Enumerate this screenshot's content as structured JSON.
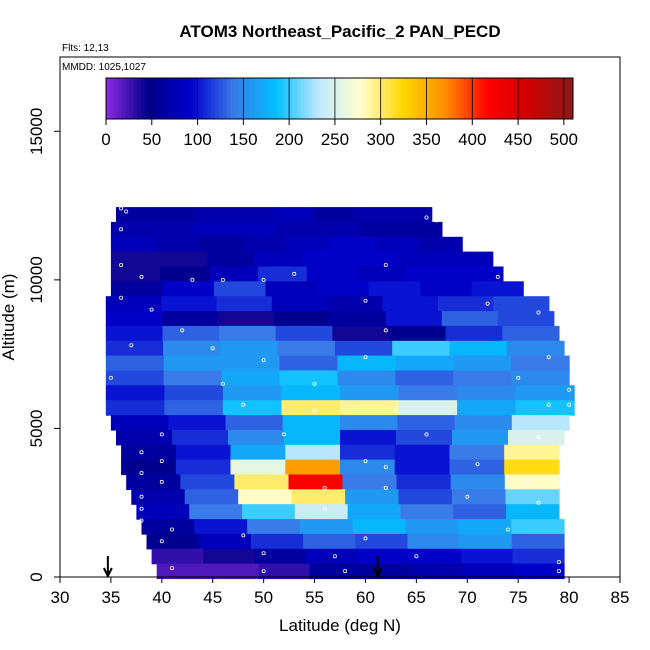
{
  "chart_data": {
    "type": "heatmap",
    "title": "ATOM3 Northeast_Pacific_2 PAN_PECD",
    "annotations": {
      "flights": "Flts: 12,13",
      "dates": "MMDD: 1025,1027"
    },
    "xlabel": "Latitude (deg N)",
    "ylabel": "Altitude (m)",
    "xlim": [
      30,
      85
    ],
    "ylim": [
      0,
      17500
    ],
    "xticks": [
      30,
      35,
      40,
      45,
      50,
      55,
      60,
      65,
      70,
      75,
      80,
      85
    ],
    "yticks": [
      0,
      5000,
      10000,
      15000
    ],
    "colorbar": {
      "ticks": [
        0,
        50,
        100,
        150,
        200,
        250,
        300,
        350,
        400,
        450,
        500
      ],
      "range": [
        0,
        510
      ],
      "colors": [
        "#8a2be2",
        "#00008b",
        "#0000cd",
        "#3a7ae8",
        "#00bfff",
        "#bfe8ff",
        "#ffffcc",
        "#ffd700",
        "#ff8c00",
        "#ff0000",
        "#cd0000",
        "#8b1a1a"
      ]
    },
    "arrows_at_latitude": [
      34.7,
      61.2
    ],
    "field_rows": [
      {
        "alt": 12200,
        "lat": [
          35.5,
          66.5
        ],
        "values": [
          60,
          60,
          70,
          70,
          80,
          60,
          70,
          70
        ]
      },
      {
        "alt": 11700,
        "lat": [
          35.0,
          67.5
        ],
        "values": [
          70,
          70,
          80,
          80,
          70,
          70,
          60,
          60
        ]
      },
      {
        "alt": 11200,
        "lat": [
          35.0,
          69.5
        ],
        "values": [
          80,
          70,
          60,
          70,
          80,
          90,
          80,
          70
        ]
      },
      {
        "alt": 10700,
        "lat": [
          35.0,
          72.5
        ],
        "values": [
          40,
          40,
          60,
          80,
          90,
          90,
          80,
          80
        ]
      },
      {
        "alt": 10200,
        "lat": [
          35.0,
          73.5
        ],
        "values": [
          40,
          50,
          80,
          110,
          90,
          80,
          90,
          90
        ]
      },
      {
        "alt": 9700,
        "lat": [
          35.0,
          75.5
        ],
        "values": [
          60,
          90,
          120,
          80,
          90,
          100,
          90,
          100
        ]
      },
      {
        "alt": 9200,
        "lat": [
          34.5,
          78.0
        ],
        "values": [
          80,
          100,
          110,
          80,
          70,
          100,
          110,
          120
        ]
      },
      {
        "alt": 8700,
        "lat": [
          34.5,
          78.5
        ],
        "values": [
          90,
          60,
          40,
          50,
          60,
          100,
          130,
          120
        ]
      },
      {
        "alt": 8200,
        "lat": [
          34.5,
          79.0
        ],
        "values": [
          100,
          130,
          140,
          120,
          40,
          50,
          110,
          130
        ]
      },
      {
        "alt": 7700,
        "lat": [
          34.5,
          79.5
        ],
        "values": [
          110,
          150,
          160,
          140,
          120,
          200,
          180,
          150
        ]
      },
      {
        "alt": 7200,
        "lat": [
          34.5,
          80.0
        ],
        "values": [
          130,
          160,
          160,
          130,
          180,
          170,
          160,
          140
        ]
      },
      {
        "alt": 6700,
        "lat": [
          34.5,
          80.0
        ],
        "values": [
          120,
          140,
          170,
          190,
          150,
          130,
          140,
          150
        ]
      },
      {
        "alt": 6200,
        "lat": [
          34.5,
          80.5
        ],
        "values": [
          100,
          120,
          160,
          180,
          160,
          140,
          150,
          160
        ]
      },
      {
        "alt": 5700,
        "lat": [
          34.5,
          80.5
        ],
        "values": [
          110,
          130,
          190,
          300,
          290,
          250,
          170,
          190
        ]
      },
      {
        "alt": 5200,
        "lat": [
          35.0,
          80.0
        ],
        "values": [
          80,
          100,
          130,
          180,
          150,
          130,
          150,
          230
        ]
      },
      {
        "alt": 4700,
        "lat": [
          35.5,
          79.5
        ],
        "values": [
          70,
          110,
          150,
          180,
          100,
          120,
          160,
          250
        ]
      },
      {
        "alt": 4200,
        "lat": [
          36.0,
          79.0
        ],
        "values": [
          60,
          100,
          170,
          230,
          110,
          100,
          140,
          290
        ]
      },
      {
        "alt": 3700,
        "lat": [
          36.0,
          79.0
        ],
        "values": [
          50,
          110,
          260,
          360,
          150,
          100,
          130,
          320
        ]
      },
      {
        "alt": 3200,
        "lat": [
          36.5,
          79.0
        ],
        "values": [
          60,
          120,
          300,
          420,
          140,
          110,
          150,
          280
        ]
      },
      {
        "alt": 2700,
        "lat": [
          37.0,
          79.0
        ],
        "values": [
          70,
          130,
          280,
          300,
          160,
          120,
          140,
          210
        ]
      },
      {
        "alt": 2200,
        "lat": [
          37.5,
          79.0
        ],
        "values": [
          80,
          140,
          200,
          240,
          170,
          140,
          130,
          180
        ]
      },
      {
        "alt": 1700,
        "lat": [
          38.0,
          79.5
        ],
        "values": [
          60,
          100,
          140,
          160,
          180,
          160,
          170,
          200
        ]
      },
      {
        "alt": 1200,
        "lat": [
          38.5,
          79.5
        ],
        "values": [
          50,
          80,
          110,
          130,
          120,
          150,
          160,
          130
        ]
      },
      {
        "alt": 700,
        "lat": [
          39.0,
          79.5
        ],
        "values": [
          30,
          40,
          60,
          80,
          90,
          90,
          100,
          110
        ]
      },
      {
        "alt": 200,
        "lat": [
          39.5,
          79.5
        ],
        "values": [
          20,
          20,
          30,
          60,
          60,
          70,
          80,
          90
        ]
      }
    ],
    "samples": [
      [
        36,
        12400
      ],
      [
        36.5,
        12300
      ],
      [
        36,
        11700
      ],
      [
        66,
        12100
      ],
      [
        67,
        12000
      ],
      [
        68,
        11800
      ],
      [
        70,
        11200
      ],
      [
        36,
        10500
      ],
      [
        38,
        10100
      ],
      [
        43,
        10000
      ],
      [
        46,
        10000
      ],
      [
        50,
        10000
      ],
      [
        53,
        10200
      ],
      [
        62,
        10500
      ],
      [
        73,
        10100
      ],
      [
        36,
        9400
      ],
      [
        39,
        9000
      ],
      [
        60,
        9300
      ],
      [
        72,
        9200
      ],
      [
        77,
        8900
      ],
      [
        42,
        8300
      ],
      [
        62,
        8300
      ],
      [
        37,
        7800
      ],
      [
        45,
        7700
      ],
      [
        50,
        7300
      ],
      [
        60,
        7400
      ],
      [
        78,
        7400
      ],
      [
        35,
        6700
      ],
      [
        46,
        6500
      ],
      [
        55,
        6500
      ],
      [
        75,
        6700
      ],
      [
        80,
        6300
      ],
      [
        48,
        5800
      ],
      [
        55,
        5600
      ],
      [
        63,
        5600
      ],
      [
        78,
        5800
      ],
      [
        80,
        5800
      ],
      [
        40,
        4800
      ],
      [
        52,
        4800
      ],
      [
        66,
        4800
      ],
      [
        77,
        4700
      ],
      [
        38,
        4200
      ],
      [
        40,
        3900
      ],
      [
        60,
        3900
      ],
      [
        62,
        3700
      ],
      [
        71,
        3800
      ],
      [
        38,
        3500
      ],
      [
        40,
        3200
      ],
      [
        56,
        3000
      ],
      [
        62,
        3000
      ],
      [
        76,
        3200
      ],
      [
        38,
        2700
      ],
      [
        38,
        2300
      ],
      [
        56,
        2300
      ],
      [
        70,
        2700
      ],
      [
        77,
        2500
      ],
      [
        38,
        1900
      ],
      [
        41,
        1600
      ],
      [
        48,
        1400
      ],
      [
        60,
        1300
      ],
      [
        74,
        1600
      ],
      [
        40,
        1200
      ],
      [
        50,
        800
      ],
      [
        57,
        700
      ],
      [
        65,
        700
      ],
      [
        79,
        500
      ],
      [
        41,
        300
      ],
      [
        50,
        200
      ],
      [
        58,
        200
      ],
      [
        79,
        200
      ]
    ]
  }
}
